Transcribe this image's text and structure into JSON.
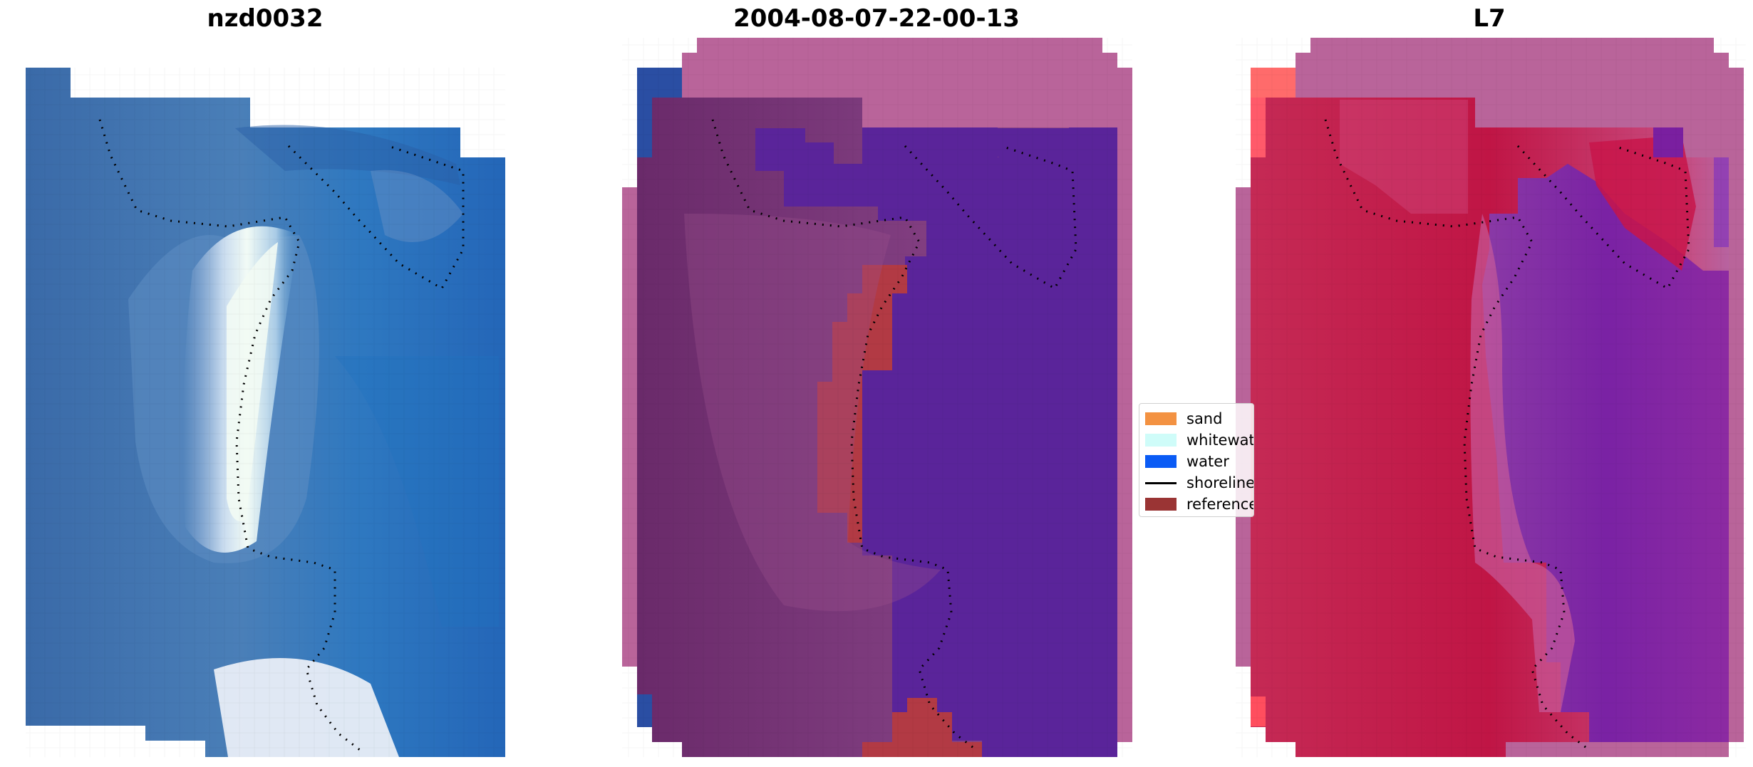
{
  "panels": {
    "left": {
      "title": "nzd0032"
    },
    "middle": {
      "title": "2004-08-07-22-00-13"
    },
    "right": {
      "title": "L7"
    }
  },
  "legend": {
    "items": [
      {
        "label": "sand",
        "color": "#f39242",
        "kind": "patch"
      },
      {
        "label": "whitewater",
        "color": "#cffcf9",
        "kind": "patch"
      },
      {
        "label": "water",
        "color": "#0a5bf5",
        "kind": "patch"
      },
      {
        "label": "shoreline",
        "color": "#000000",
        "kind": "line"
      },
      {
        "label": "reference",
        "color": "#9a3434",
        "kind": "patch"
      }
    ]
  },
  "colors": {
    "background": "#ffffff",
    "rgb_ocean": "#2566b5",
    "rgb_land": "#3f6aa8",
    "rgb_bright": "#eef8f4",
    "overlay_pink": "#b9649a",
    "overlay_land": "#6a2a6c",
    "overlay_water": "#5a249a",
    "overlay_reference": "#b23a44",
    "l7_red": "#c8224a",
    "l7_purple": "#7a1fa0",
    "l7_coral": "#ff6b6b"
  }
}
